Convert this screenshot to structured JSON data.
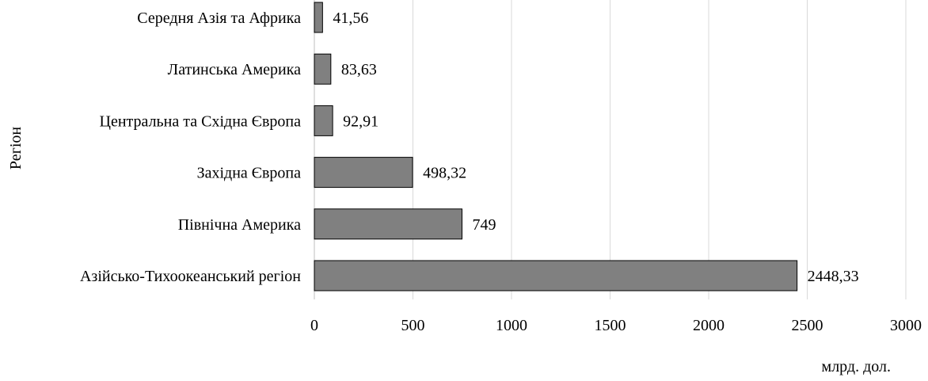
{
  "chart_data": {
    "type": "bar",
    "orientation": "horizontal",
    "categories": [
      "Азійсько-Тихоокеанський регіон",
      "Північна Америка",
      "Західна Європа",
      "Центральна та Східна Європа",
      "Латинська Америка",
      "Середня Азія та Африка"
    ],
    "values": [
      2448.33,
      749,
      498.32,
      92.91,
      83.63,
      41.56
    ],
    "value_labels": [
      "2448,33",
      "749",
      "498,32",
      "92,91",
      "83,63",
      "41,56"
    ],
    "x_ticks": [
      0,
      500,
      1000,
      1500,
      2000,
      2500,
      3000
    ],
    "xlim": [
      0,
      3000
    ],
    "xlabel": "млрд. дол.",
    "ylabel": "Регіон",
    "grid": "vertical",
    "legend": "none",
    "colors": {
      "bar": "#808080",
      "bar_border": "#000000",
      "grid": "#d9d9d9",
      "axis": "#bfbfbf",
      "text": "#000000"
    }
  }
}
